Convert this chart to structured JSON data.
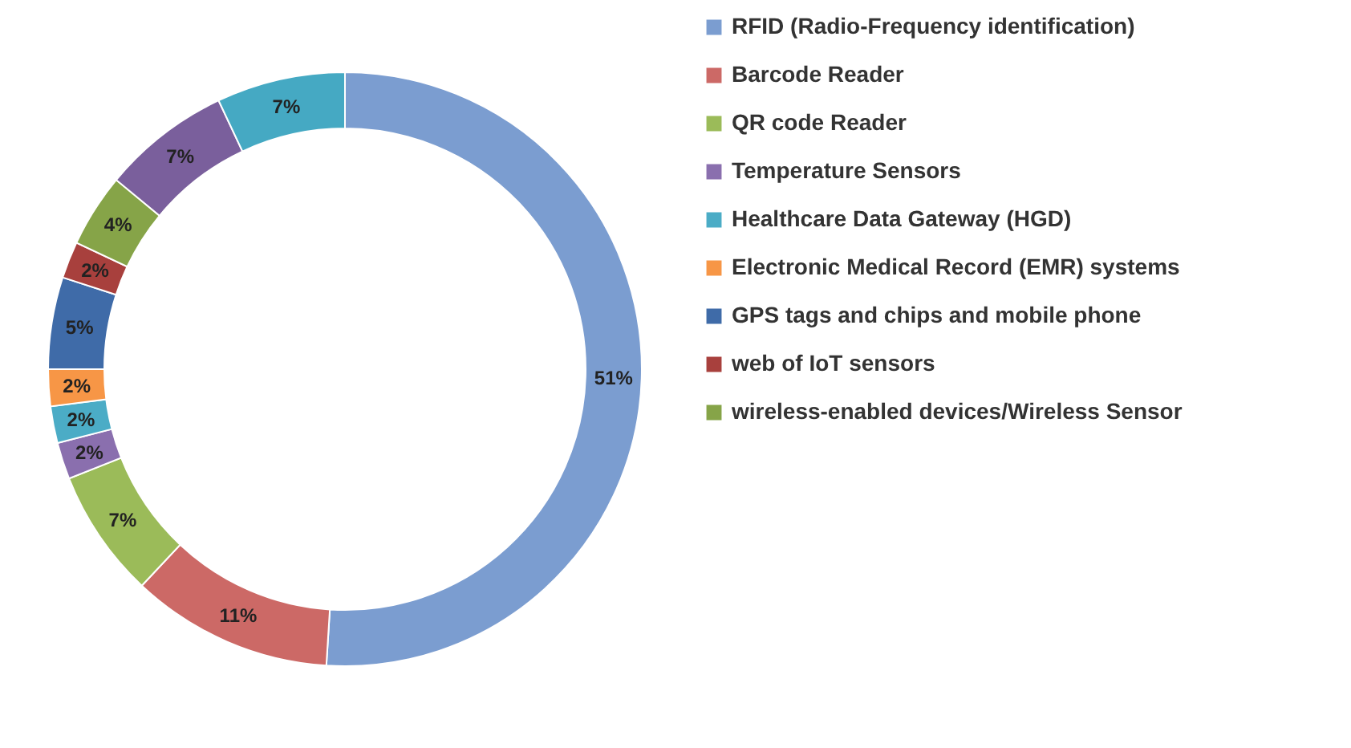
{
  "chart_data": {
    "type": "donut",
    "categories": [
      "RFID (Radio-Frequency identification)",
      "Barcode Reader",
      "QR code Reader",
      "Temperature Sensors",
      "Healthcare Data Gateway (HGD)",
      "Electronic Medical Record (EMR) systems",
      "GPS tags and chips and mobile phone",
      "web of IoT sensors",
      "wireless-enabled devices/Wireless Sensor",
      null,
      null
    ],
    "values": [
      51,
      11,
      7,
      2,
      2,
      2,
      5,
      2,
      4,
      7,
      7
    ],
    "value_labels": [
      "51%",
      "11%",
      "7%",
      "2%",
      "2%",
      "2%",
      "5%",
      "2%",
      "4%",
      "7%",
      "7%"
    ],
    "colors": [
      "#7b9dd0",
      "#cc6966",
      "#9bbb59",
      "#8a6fae",
      "#4bacc6",
      "#f79646",
      "#3f6ba8",
      "#a8403d",
      "#86a448",
      "#7a5f9c",
      "#45a9c3"
    ],
    "legend": "right"
  }
}
